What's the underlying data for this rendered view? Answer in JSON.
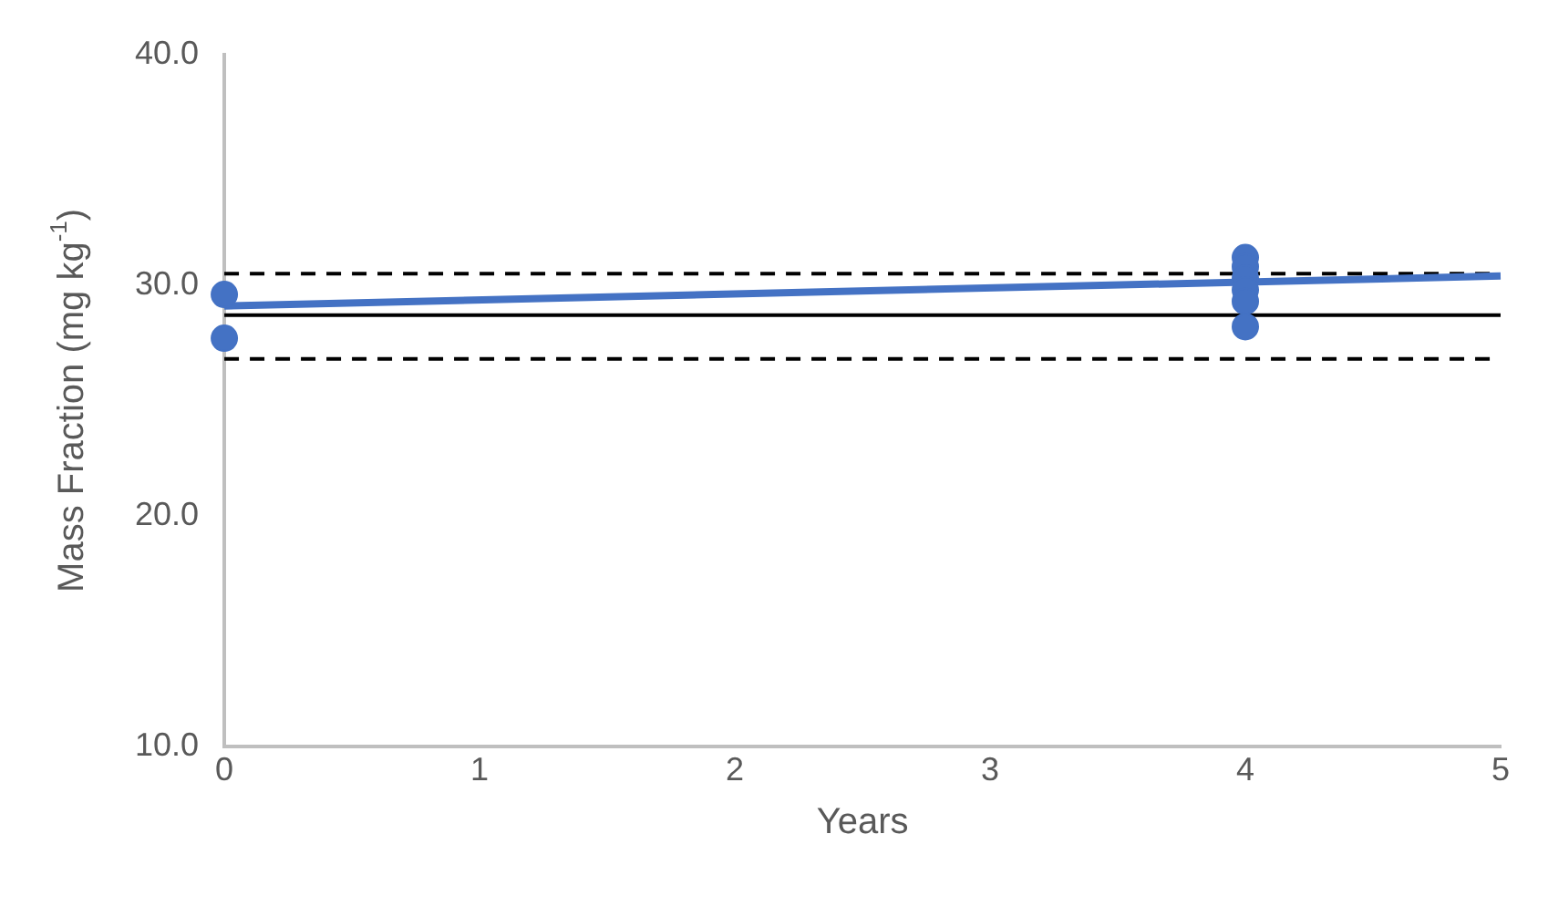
{
  "chart_data": {
    "type": "scatter",
    "xlabel": "Years",
    "ylabel": "Mass Fraction (mg kg$^{-1}$)",
    "xlim": [
      0,
      5
    ],
    "xticks": [
      0,
      1,
      2,
      3,
      4,
      5
    ],
    "ylim": [
      10,
      40
    ],
    "yticks": [
      {
        "value": 10,
        "label": "10.0"
      },
      {
        "value": 20,
        "label": "20.0"
      },
      {
        "value": 30,
        "label": "30.0"
      },
      {
        "value": 40,
        "label": "40.0"
      }
    ],
    "grid": false,
    "legend": false,
    "marker": "circle",
    "series": [
      {
        "color": "#4472c4",
        "x": [
          0,
          0,
          4,
          4,
          4,
          4,
          4,
          4
        ],
        "values": [
          29.6,
          27.7,
          31.2,
          30.8,
          30.3,
          29.8,
          29.3,
          28.2
        ]
      },
      {
        "type": "line",
        "color": "#4472c4",
        "x": [
          0,
          5
        ],
        "values": [
          29.1,
          30.4
        ],
        "marker": "none",
        "line_style": "solid"
      }
    ],
    "ref_lines": [
      {
        "axis": "y",
        "value": 28.7,
        "color": "#000000",
        "line_style": "solid"
      },
      {
        "axis": "y",
        "value": 30.5,
        "color": "#000000",
        "line_style": "dashed"
      },
      {
        "axis": "y",
        "value": 26.8,
        "color": "#000000",
        "line_style": "dashed"
      }
    ]
  }
}
